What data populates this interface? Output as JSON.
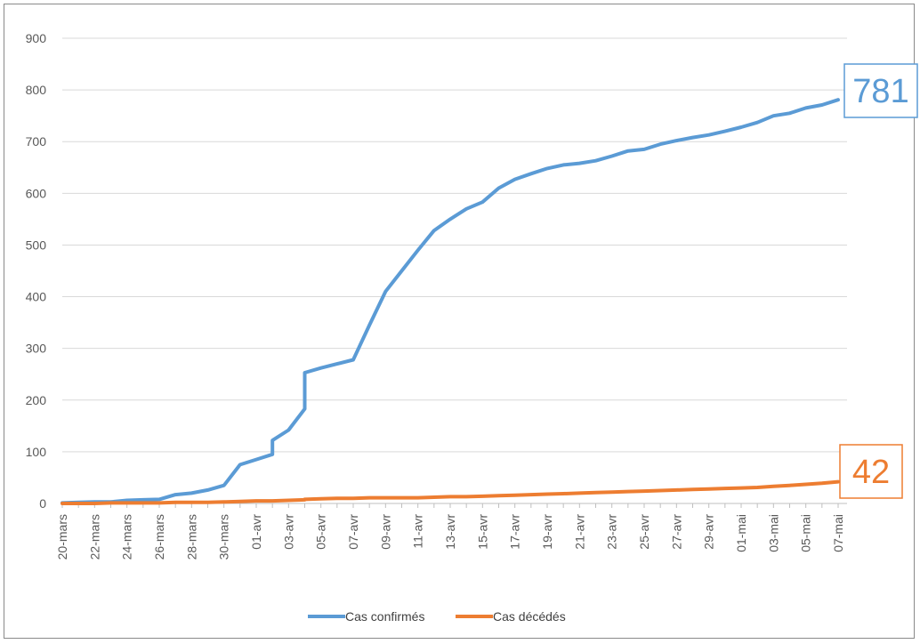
{
  "chart_data": {
    "type": "line",
    "title": "",
    "xlabel": "",
    "ylabel": "",
    "ylim": [
      0,
      900
    ],
    "yticks": [
      0,
      100,
      200,
      300,
      400,
      500,
      600,
      700,
      800,
      900
    ],
    "grid": true,
    "legend_position": "bottom",
    "x_tick_labels": [
      "20-mars",
      "22-mars",
      "24-mars",
      "26-mars",
      "28-mars",
      "30-mars",
      "01-avr",
      "03-avr",
      "05-avr",
      "07-avr",
      "09-avr",
      "11-avr",
      "13-avr",
      "15-avr",
      "17-avr",
      "19-avr",
      "21-avr",
      "23-avr",
      "25-avr",
      "27-avr",
      "29-avr",
      "01-mai",
      "03-mai",
      "05-mai",
      "07-mai"
    ],
    "x": [
      "20-mars",
      "21-mars",
      "22-mars",
      "23-mars",
      "24-mars",
      "25-mars",
      "26-mars",
      "27-mars",
      "28-mars",
      "29-mars",
      "30-mars",
      "31-mars",
      "01-avr",
      "02-avr",
      "02-avr",
      "03-avr",
      "04-avr",
      "04-avr",
      "05-avr",
      "06-avr",
      "07-avr",
      "08-avr",
      "09-avr",
      "10-avr",
      "11-avr",
      "12-avr",
      "13-avr",
      "14-avr",
      "15-avr",
      "16-avr",
      "17-avr",
      "18-avr",
      "19-avr",
      "20-avr",
      "21-avr",
      "22-avr",
      "23-avr",
      "24-avr",
      "25-avr",
      "26-avr",
      "27-avr",
      "28-avr",
      "29-avr",
      "30-avr",
      "01-mai",
      "02-mai",
      "03-mai",
      "04-mai",
      "05-mai",
      "06-mai",
      "07-mai"
    ],
    "series": [
      {
        "name": "Cas confirmés",
        "color": "#5b9bd5",
        "values": [
          1,
          2,
          3,
          3,
          6,
          7,
          8,
          17,
          20,
          26,
          35,
          75,
          85,
          95,
          122,
          142,
          183,
          253,
          262,
          270,
          278,
          345,
          410,
          450,
          490,
          528,
          550,
          570,
          583,
          610,
          627,
          638,
          648,
          655,
          658,
          663,
          672,
          682,
          685,
          695,
          702,
          708,
          713,
          720,
          728,
          737,
          750,
          755,
          765,
          771,
          781
        ]
      },
      {
        "name": "Cas décédés",
        "color": "#ed7d31",
        "values": [
          0,
          0,
          0,
          1,
          1,
          1,
          1,
          2,
          2,
          2,
          3,
          4,
          5,
          5,
          5,
          6,
          7,
          8,
          9,
          10,
          10,
          11,
          11,
          11,
          11,
          12,
          13,
          13,
          14,
          15,
          16,
          17,
          18,
          19,
          20,
          21,
          22,
          23,
          24,
          25,
          26,
          27,
          28,
          29,
          30,
          31,
          33,
          35,
          37,
          39,
          42
        ]
      }
    ],
    "annotations": [
      {
        "series": "Cas confirmés",
        "text": "781",
        "color": "#5b9bd5"
      },
      {
        "series": "Cas décédés",
        "text": "42",
        "color": "#ed7d31"
      }
    ]
  }
}
